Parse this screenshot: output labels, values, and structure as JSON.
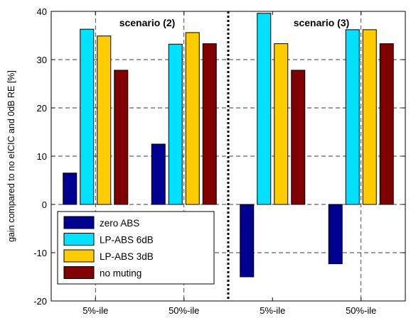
{
  "chart_data": {
    "type": "bar",
    "ylabel": "gain compared to no eICIC and 0dB RE [%]",
    "ylim": [
      -20,
      40
    ],
    "yticks": [
      -20,
      -10,
      0,
      10,
      20,
      30,
      40
    ],
    "grid": true,
    "legend_position": "lower-left",
    "groups": [
      "5%-ile",
      "50%-ile",
      "5%-ile",
      "50%-ile"
    ],
    "annotations": [
      "scenario (2)",
      "scenario (3)"
    ],
    "series": [
      {
        "name": "zero ABS",
        "color": "#000090",
        "values": [
          6.5,
          12.5,
          -15.0,
          -12.3
        ]
      },
      {
        "name": "LP-ABS 6dB",
        "color": "#00e0ff",
        "values": [
          36.3,
          33.2,
          39.6,
          36.2
        ]
      },
      {
        "name": "LP-ABS 3dB",
        "color": "#ffcc00",
        "values": [
          34.9,
          35.6,
          33.3,
          36.2
        ]
      },
      {
        "name": "no muting",
        "color": "#800000",
        "values": [
          27.8,
          33.3,
          27.8,
          33.3
        ]
      }
    ]
  }
}
